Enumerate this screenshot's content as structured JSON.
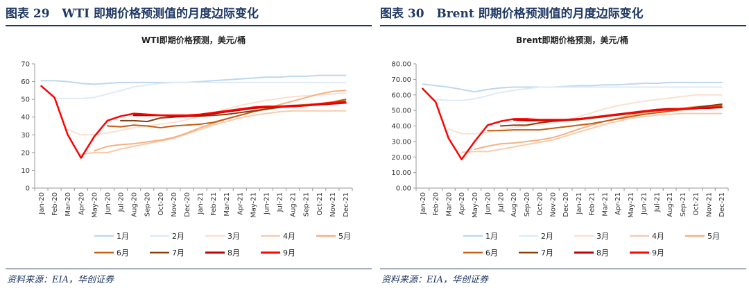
{
  "left": {
    "figure_label": "图表 29",
    "figure_title": "WTI 即期价格预测值的月度边际变化",
    "source": "资料来源：EIA，华创证券"
  },
  "right": {
    "figure_label": "图表 30",
    "figure_title": "Brent 即期价格预测值的月度边际变化",
    "source": "资料来源：EIA，华创证券"
  },
  "chart_data": [
    {
      "type": "line",
      "title": "WTI即期价格预测，美元/桶",
      "xlabel": "",
      "ylabel": "",
      "ylim": [
        0,
        70
      ],
      "yticks": [
        "0",
        "10",
        "20",
        "30",
        "40",
        "50",
        "60",
        "70"
      ],
      "ytick_values": [
        0,
        10,
        20,
        30,
        40,
        50,
        60,
        70
      ],
      "categories": [
        "Jan-20",
        "Feb-20",
        "Mar-20",
        "Apr-20",
        "May-20",
        "Jun-20",
        "Jul-20",
        "Aug-20",
        "Sep-20",
        "Oct-20",
        "Nov-20",
        "Dec-20",
        "Jan-21",
        "Feb-21",
        "Mar-21",
        "Apr-21",
        "May-21",
        "Jun-21",
        "Jul-21",
        "Aug-21",
        "Sep-21",
        "Oct-21",
        "Nov-21",
        "Dec-21"
      ],
      "series": [
        {
          "name": "1月",
          "color": "#bdd7ee",
          "width": 2,
          "values": [
            60.5,
            60.5,
            60,
            59,
            58.5,
            59,
            59.5,
            59.5,
            59.5,
            59.5,
            59.5,
            59.5,
            60,
            60.5,
            61,
            61.5,
            62,
            62.5,
            62.5,
            63,
            63,
            63.5,
            63.5,
            63.5
          ]
        },
        {
          "name": "2月",
          "color": "#deebf7",
          "width": 2,
          "values": [
            null,
            50.5,
            50.5,
            50.5,
            51,
            53,
            55,
            57,
            58,
            59,
            59.5,
            59.5,
            59.5,
            59.5,
            59.5,
            59.5,
            59.5,
            59.5,
            59.5,
            59.5,
            59.5,
            59.5,
            59.5,
            59.5
          ]
        },
        {
          "name": "3月",
          "color": "#fbe0cf",
          "width": 2,
          "values": [
            null,
            null,
            33,
            30,
            30,
            31,
            32.5,
            34,
            35,
            36,
            37,
            38.5,
            40.5,
            42.5,
            44.5,
            46.5,
            48,
            49.5,
            50.5,
            51.5,
            52,
            52.5,
            53,
            53.5
          ]
        },
        {
          "name": "4月",
          "color": "#f8cbad",
          "width": 2,
          "values": [
            null,
            null,
            null,
            19,
            20,
            20,
            22,
            23.5,
            25,
            26.5,
            28,
            30.5,
            33,
            35.5,
            37.5,
            39.5,
            41,
            42,
            43,
            43.5,
            43.5,
            43.5,
            43.5,
            43.5
          ]
        },
        {
          "name": "5月",
          "color": "#f4b183",
          "width": 2,
          "values": [
            null,
            null,
            null,
            null,
            21,
            23.5,
            24.5,
            25,
            26,
            27,
            28.5,
            31,
            34,
            36.5,
            39,
            41,
            43,
            45,
            47,
            49,
            51,
            53,
            54.5,
            55
          ]
        },
        {
          "name": "6月",
          "color": "#c55a11",
          "width": 2,
          "values": [
            null,
            null,
            null,
            null,
            null,
            35,
            34.5,
            35.5,
            35,
            34,
            35,
            35.5,
            36,
            37,
            39,
            41,
            43,
            44.5,
            45.5,
            46.5,
            47,
            47.5,
            48.5,
            50
          ]
        },
        {
          "name": "7月",
          "color": "#843c0c",
          "width": 2,
          "values": [
            null,
            null,
            null,
            null,
            null,
            null,
            38,
            38,
            37.5,
            39.5,
            40,
            40.5,
            40.5,
            41,
            41.5,
            42.5,
            43.5,
            44.5,
            45.5,
            46,
            46.5,
            47,
            48,
            49
          ]
        },
        {
          "name": "8月",
          "color": "#c00000",
          "width": 2.5,
          "values": [
            null,
            null,
            null,
            null,
            null,
            null,
            null,
            41,
            41,
            41,
            40.5,
            40.5,
            41,
            42,
            43,
            44,
            45,
            45.5,
            46,
            46.5,
            46.5,
            47,
            47.5,
            48
          ]
        },
        {
          "name": "9月",
          "color": "#ff0000",
          "width": 2.5,
          "values": [
            57.5,
            51,
            30,
            17,
            29,
            38,
            40.5,
            42,
            41.5,
            41,
            41,
            41,
            41.5,
            42.5,
            43.5,
            44.5,
            45.5,
            46,
            46,
            46,
            46.5,
            47.5,
            48,
            48
          ]
        }
      ]
    },
    {
      "type": "line",
      "title": "Brent即期价格预测，美元/桶",
      "xlabel": "",
      "ylabel": "",
      "ylim": [
        0,
        80
      ],
      "yticks": [
        "0.00",
        "10.00",
        "20.00",
        "30.00",
        "40.00",
        "50.00",
        "60.00",
        "70.00",
        "80.00"
      ],
      "ytick_values": [
        0,
        10,
        20,
        30,
        40,
        50,
        60,
        70,
        80
      ],
      "categories": [
        "Jan-20",
        "Feb-20",
        "Mar-20",
        "Apr-20",
        "May-20",
        "Jun-20",
        "Jul-20",
        "Aug-20",
        "Sep-20",
        "Oct-20",
        "Nov-20",
        "Dec-20",
        "Jan-21",
        "Feb-21",
        "Mar-21",
        "Apr-21",
        "May-21",
        "Jun-21",
        "Jul-21",
        "Aug-21",
        "Sep-21",
        "Oct-21",
        "Nov-21",
        "Dec-21"
      ],
      "series": [
        {
          "name": "1月",
          "color": "#bdd7ee",
          "width": 2,
          "values": [
            67,
            66,
            65,
            63.5,
            62,
            63.5,
            64.5,
            65,
            65,
            65,
            65,
            65.5,
            66,
            66,
            66.5,
            66.5,
            67,
            67.5,
            67.5,
            68,
            68,
            68,
            68,
            68
          ]
        },
        {
          "name": "2月",
          "color": "#deebf7",
          "width": 2,
          "values": [
            null,
            57,
            56.5,
            56.5,
            57.5,
            59.5,
            61.5,
            63,
            64,
            65,
            65,
            65,
            65,
            65,
            65,
            65,
            65,
            65,
            65,
            65,
            65,
            65,
            65,
            65
          ]
        },
        {
          "name": "3月",
          "color": "#fbe0cf",
          "width": 2,
          "values": [
            null,
            null,
            38,
            35,
            35,
            36,
            37.5,
            39,
            40,
            41,
            42,
            43.5,
            46,
            48.5,
            51,
            53,
            54.5,
            56,
            57,
            58,
            59,
            60,
            60,
            60
          ]
        },
        {
          "name": "4月",
          "color": "#f8cbad",
          "width": 2,
          "values": [
            null,
            null,
            null,
            23,
            23.5,
            23.5,
            25,
            26.5,
            28,
            29.5,
            31,
            33.5,
            36,
            38.5,
            41,
            43,
            45,
            46,
            47,
            47.5,
            48,
            48,
            48,
            48
          ]
        },
        {
          "name": "5月",
          "color": "#f4b183",
          "width": 2,
          "values": [
            null,
            null,
            null,
            null,
            25,
            27,
            28.5,
            29,
            30,
            31,
            32.5,
            35,
            38,
            40.5,
            43,
            45,
            47,
            48.5,
            49.5,
            50.5,
            51.5,
            52.5,
            53,
            53.5
          ]
        },
        {
          "name": "6月",
          "color": "#c55a11",
          "width": 2,
          "values": [
            null,
            null,
            null,
            null,
            null,
            37,
            37,
            37.5,
            37.5,
            37.5,
            38.5,
            39.5,
            40.5,
            41.5,
            43,
            44.5,
            46,
            47.5,
            48.5,
            49.5,
            50.5,
            51,
            52,
            53
          ]
        },
        {
          "name": "7月",
          "color": "#843c0c",
          "width": 2,
          "values": [
            null,
            null,
            null,
            null,
            null,
            null,
            40,
            40.5,
            40.5,
            42,
            43,
            43.5,
            44,
            45,
            46,
            47,
            48,
            49,
            50,
            50.5,
            51,
            52,
            53,
            54
          ]
        },
        {
          "name": "8月",
          "color": "#c00000",
          "width": 2.5,
          "values": [
            null,
            null,
            null,
            null,
            null,
            null,
            null,
            44,
            43.5,
            43.5,
            43.5,
            44,
            44.5,
            45.5,
            46.5,
            47.5,
            48.5,
            49.5,
            50.5,
            51,
            51,
            51.5,
            51.5,
            52
          ]
        },
        {
          "name": "9月",
          "color": "#ff0000",
          "width": 2.5,
          "values": [
            64,
            55.5,
            32,
            18.5,
            30,
            40.5,
            43,
            44.5,
            44.5,
            44,
            44,
            44,
            44.5,
            45.5,
            46.5,
            47.5,
            48.5,
            49.5,
            50,
            50.5,
            51,
            51.5,
            52,
            52
          ]
        }
      ]
    }
  ]
}
